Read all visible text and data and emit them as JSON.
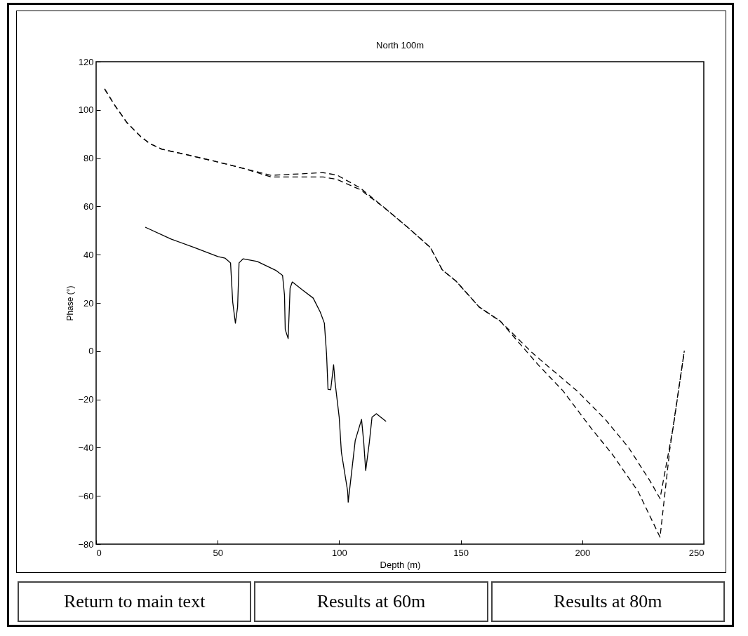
{
  "chart_data": {
    "type": "line",
    "title": "North 100m",
    "xlabel": "Depth (m)",
    "ylabel": "Phase (°)",
    "xlim": [
      0,
      250
    ],
    "ylim": [
      -80,
      120
    ],
    "xticks": [
      0,
      50,
      100,
      150,
      200,
      250
    ],
    "yticks": [
      -80,
      -60,
      -40,
      -20,
      0,
      20,
      40,
      60,
      80,
      100,
      120
    ],
    "grid": false,
    "line_style": "dashed",
    "series": [
      {
        "color": "#000000",
        "line_style": "solid",
        "x": [
          20.2,
          30.8,
          40.3,
          50.1,
          53.0,
          55.3,
          56.2,
          57.3,
          58.2,
          58.8,
          60.5,
          66.3,
          74.1,
          76.7,
          77.5,
          77.8,
          79.0,
          79.8,
          80.7,
          84.7,
          89.3,
          92.2,
          93.9,
          94.8,
          95.4,
          96.5,
          97.7,
          98.3,
          100.0,
          100.9,
          103.5,
          103.7,
          106.6,
          109.2,
          110.1,
          110.9,
          112.4,
          113.5,
          115.3,
          119.3
        ],
        "values": [
          51.4,
          46.5,
          43.0,
          39.2,
          38.6,
          36.6,
          20.3,
          11.6,
          18.3,
          36.6,
          38.3,
          37.2,
          33.4,
          31.4,
          23.2,
          9.0,
          5.2,
          26.1,
          28.7,
          25.5,
          22.0,
          16.2,
          11.6,
          -1.2,
          -15.8,
          -16.0,
          -5.6,
          -12.9,
          -27.4,
          -41.9,
          -58.2,
          -62.6,
          -37.0,
          -28.3,
          -37.8,
          -49.5,
          -37.8,
          -27.4,
          -25.9,
          -29.1
        ]
      },
      {
        "color": "#000000",
        "x": [
          3.5,
          7.8,
          12.7,
          18.4,
          22.2,
          27.1,
          36.6,
          49,
          60.5,
          72,
          93.4,
          99.1,
          108.6,
          118.2,
          128.8,
          137.5,
          142.4,
          148.1,
          157.6,
          166.3,
          178.7,
          182.1,
          198,
          209.5,
          219,
          227.7,
          232,
          237.5,
          242
        ],
        "values": [
          108.7,
          101.7,
          94.7,
          88.9,
          86.0,
          83.7,
          81.6,
          78.7,
          75.8,
          72.9,
          74,
          73,
          67.7,
          59.8,
          50.8,
          43,
          33.7,
          29,
          18.3,
          12.4,
          0,
          -3,
          -16.6,
          -28.3,
          -39.9,
          -53.5,
          -61.1,
          -31,
          0.2
        ]
      },
      {
        "color": "#000000",
        "x": [
          3.5,
          7.8,
          12.7,
          18.4,
          22.2,
          27.1,
          36.6,
          49,
          60.5,
          72,
          93.4,
          99.1,
          108.6,
          118.2,
          128.8,
          137.5,
          142.4,
          148.1,
          157.6,
          166.3,
          178.7,
          182.1,
          192.2,
          203.7,
          212.4,
          223,
          232,
          236,
          242
        ],
        "values": [
          108.7,
          101.7,
          94.7,
          88.9,
          86.0,
          83.7,
          81.6,
          78.7,
          75.8,
          72.2,
          72.2,
          71.2,
          67.0,
          59.8,
          50.8,
          43,
          33.7,
          29,
          18.3,
          12.4,
          -2,
          -5.9,
          -16.6,
          -32,
          -42.8,
          -58.2,
          -77.1,
          -40.8,
          0.2
        ]
      }
    ],
    "annotations": [
      "Return to main text",
      "Results at 60m",
      "Results at 80m"
    ]
  }
}
